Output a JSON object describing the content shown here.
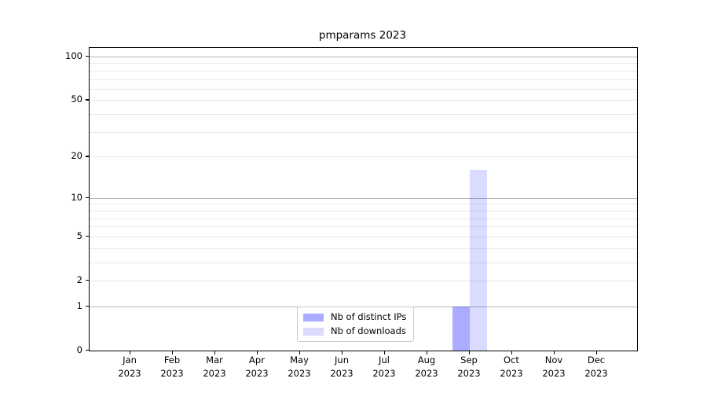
{
  "chart_data": {
    "type": "bar",
    "title": "pmparams 2023",
    "categories": [
      "Jan",
      "Feb",
      "Mar",
      "Apr",
      "May",
      "Jun",
      "Jul",
      "Aug",
      "Sep",
      "Oct",
      "Nov",
      "Dec"
    ],
    "x_year_label": "2023",
    "series": [
      {
        "name": "Nb of distinct IPs",
        "color": "rgba(0,0,255,0.33)",
        "values": [
          0,
          0,
          0,
          0,
          0,
          0,
          0,
          0,
          1,
          0,
          0,
          0
        ]
      },
      {
        "name": "Nb of downloads",
        "color": "rgba(0,0,255,0.14)",
        "values": [
          0,
          0,
          0,
          0,
          0,
          0,
          0,
          0,
          16,
          0,
          0,
          0
        ]
      }
    ],
    "y_axis": {
      "scale": "log10(1+y)",
      "ticks": [
        0,
        1,
        2,
        5,
        10,
        20,
        50,
        100
      ],
      "gridlines_major": [
        1,
        10,
        100
      ],
      "gridlines_minor": [
        2,
        3,
        4,
        5,
        6,
        7,
        8,
        9,
        20,
        30,
        40,
        50,
        60,
        70,
        80,
        90
      ],
      "range": [
        0,
        115
      ]
    },
    "xlabel": "",
    "ylabel": "",
    "grid": true,
    "legend_position": "lower center"
  },
  "colors": {
    "background": "#ffffff",
    "axis": "#000000",
    "text": "#000000",
    "gridline_minor": "#e8e8e8",
    "gridline_major": "#b6b6b6",
    "legend_border": "#cccccc"
  }
}
